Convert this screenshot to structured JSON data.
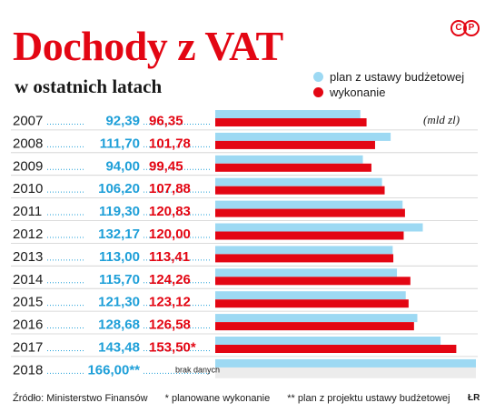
{
  "header": {
    "title": "Dochody z VAT",
    "subtitle": "w ostatnich latach",
    "logo_text": "©P",
    "unit": "(mld zl)"
  },
  "legend": [
    {
      "label": "plan z ustawy budżetowej",
      "color": "#9dd9f3"
    },
    {
      "label": "wykonanie",
      "color": "#e30613"
    }
  ],
  "chart_data": {
    "type": "bar",
    "orientation": "horizontal",
    "categories": [
      "2007",
      "2008",
      "2009",
      "2010",
      "2011",
      "2012",
      "2013",
      "2014",
      "2015",
      "2016",
      "2017",
      "2018"
    ],
    "series": [
      {
        "name": "plan z ustawy budżetowej",
        "color": "#9dd9f3",
        "values": [
          92.39,
          111.7,
          94.0,
          106.2,
          119.3,
          132.17,
          113.0,
          115.7,
          121.3,
          128.68,
          143.48,
          166.0
        ],
        "labels": [
          "92,39",
          "111,70",
          "94,00",
          "106,20",
          "119,30",
          "132,17",
          "113,00",
          "115,70",
          "121,30",
          "128,68",
          "143,48",
          "166,00**"
        ]
      },
      {
        "name": "wykonanie",
        "color": "#e30613",
        "values": [
          96.35,
          101.78,
          99.45,
          107.88,
          120.83,
          120.0,
          113.41,
          124.26,
          123.12,
          126.58,
          153.5,
          null
        ],
        "labels": [
          "96,35",
          "101,78",
          "99,45",
          "107,88",
          "120,83",
          "120,00",
          "113,41",
          "124,26",
          "123,12",
          "126,58",
          "153,50*",
          "brak danych"
        ]
      }
    ],
    "xlim": [
      0,
      166
    ],
    "unit": "(mld zl)",
    "colors": {
      "plan_label": "#1e9fd8",
      "actual_label": "#e30613",
      "leader": "#1e9fd8"
    }
  },
  "footer": {
    "source": "Źródło: Ministerstwo Finansów",
    "note1": "* planowane wykonanie",
    "note2": "** plan z projektu ustawy budżetowej",
    "agency": "ŁR"
  }
}
